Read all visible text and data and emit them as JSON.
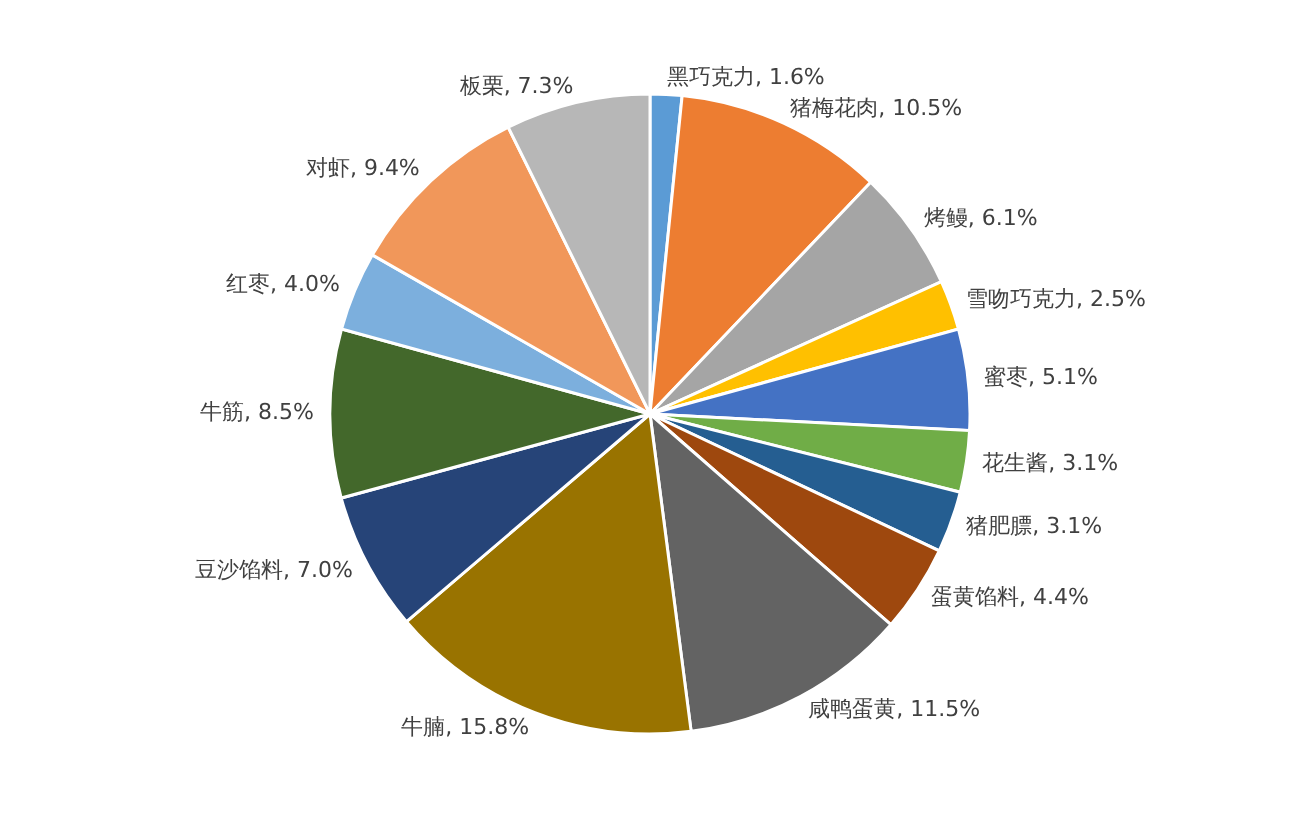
{
  "chart_data": {
    "type": "pie",
    "categories": [
      "黑巧克力",
      "猪梅花肉",
      "烤鳗",
      "雪吻巧克力",
      "蜜枣",
      "花生酱",
      "猪肥膘",
      "蛋黄馅料",
      "咸鸭蛋黄",
      "牛腩",
      "豆沙馅料",
      "牛筋",
      "红枣",
      "对虾",
      "板栗"
    ],
    "values": [
      1.6,
      10.5,
      6.1,
      2.5,
      5.1,
      3.1,
      3.1,
      4.4,
      11.5,
      15.8,
      7.0,
      8.5,
      4.0,
      9.4,
      7.3
    ],
    "value_labels": [
      "1.6%",
      "10.5%",
      "6.1%",
      "2.5%",
      "5.1%",
      "3.1%",
      "3.1%",
      "4.4%",
      "11.5%",
      "15.8%",
      "7.0%",
      "8.5%",
      "4.0%",
      "9.4%",
      "7.3%"
    ],
    "colors": [
      "#5b9bd5",
      "#ed7d31",
      "#a5a5a5",
      "#ffc000",
      "#4472c4",
      "#70ad47",
      "#255e91",
      "#9e480e",
      "#636363",
      "#997300",
      "#264478",
      "#43682b",
      "#7cafdd",
      "#f1975a",
      "#b7b7b7"
    ],
    "legend": false
  }
}
